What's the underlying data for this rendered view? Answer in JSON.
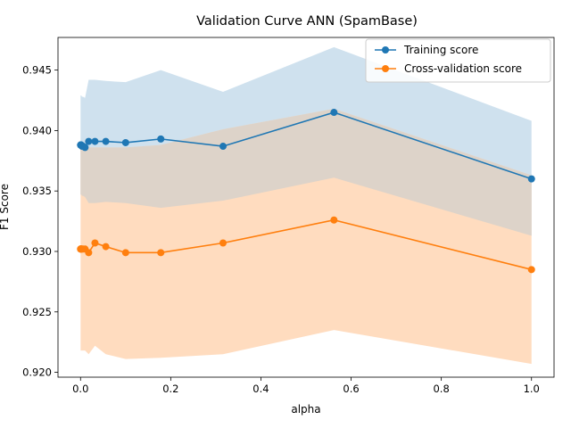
{
  "chart_data": {
    "type": "line",
    "title": "Validation Curve ANN (SpamBase)",
    "xlabel": "alpha",
    "ylabel": "F1 Score",
    "xlim": [
      -0.05,
      1.05
    ],
    "ylim": [
      0.9196,
      0.9477
    ],
    "grid": false,
    "legend_position": "top-right",
    "x_ticks": [
      0.0,
      0.2,
      0.4,
      0.6,
      0.8,
      1.0
    ],
    "x_tick_labels": [
      "0.0",
      "0.2",
      "0.4",
      "0.6",
      "0.8",
      "1.0"
    ],
    "y_ticks": [
      0.92,
      0.925,
      0.93,
      0.935,
      0.94,
      0.945
    ],
    "y_tick_labels": [
      "0.920",
      "0.925",
      "0.930",
      "0.935",
      "0.940",
      "0.945"
    ],
    "x": [
      0.0001,
      0.00018,
      0.00032,
      0.00056,
      0.001,
      0.0018,
      0.0032,
      0.0056,
      0.01,
      0.018,
      0.032,
      0.056,
      0.1,
      0.178,
      0.316,
      0.562,
      1.0
    ],
    "series": [
      {
        "name": "Training score",
        "color": "#1f77b4",
        "values": [
          0.9388,
          0.9388,
          0.9388,
          0.9388,
          0.9388,
          0.9388,
          0.9387,
          0.9387,
          0.9386,
          0.9391,
          0.9391,
          0.9391,
          0.939,
          0.9393,
          0.9387,
          0.9415,
          0.936
        ],
        "band_upper": [
          0.9429,
          0.9429,
          0.9429,
          0.9429,
          0.9429,
          0.9429,
          0.9428,
          0.9428,
          0.9427,
          0.9442,
          0.9442,
          0.9441,
          0.944,
          0.945,
          0.9432,
          0.9469,
          0.9408
        ],
        "band_lower": [
          0.9347,
          0.9347,
          0.9347,
          0.9347,
          0.9347,
          0.9347,
          0.9346,
          0.9346,
          0.9345,
          0.934,
          0.934,
          0.9341,
          0.934,
          0.9336,
          0.9342,
          0.9361,
          0.9313
        ],
        "band_color": "#cfe1ee"
      },
      {
        "name": "Cross-validation score",
        "color": "#ff7f0e",
        "values": [
          0.9302,
          0.9302,
          0.9302,
          0.9302,
          0.9302,
          0.9302,
          0.9302,
          0.9302,
          0.9302,
          0.9299,
          0.9307,
          0.9304,
          0.9299,
          0.9299,
          0.9307,
          0.9326,
          0.9285
        ],
        "band_upper": [
          0.9386,
          0.9386,
          0.9386,
          0.9386,
          0.9386,
          0.9386,
          0.9386,
          0.9386,
          0.9386,
          0.9386,
          0.9386,
          0.9386,
          0.9386,
          0.9388,
          0.9401,
          0.9418,
          0.9363
        ],
        "band_lower": [
          0.9218,
          0.9218,
          0.9218,
          0.9218,
          0.9218,
          0.9218,
          0.9218,
          0.9218,
          0.9218,
          0.9215,
          0.9222,
          0.9215,
          0.9211,
          0.9212,
          0.9215,
          0.9235,
          0.9207
        ],
        "band_color": "#ffdcbf",
        "overlap_color": "#ddd3c9"
      }
    ]
  }
}
